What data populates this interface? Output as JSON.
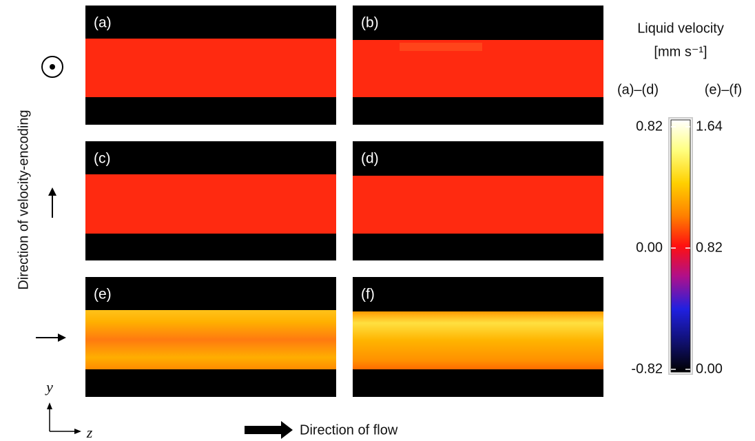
{
  "panels": [
    {
      "label": "(a)"
    },
    {
      "label": "(b)"
    },
    {
      "label": "(c)"
    },
    {
      "label": "(d)"
    },
    {
      "label": "(e)"
    },
    {
      "label": "(f)"
    }
  ],
  "colorbar": {
    "title": "Liquid velocity",
    "unit": "[mm s⁻¹]",
    "left": {
      "label": "(a)–(d)",
      "lim": [
        -0.82,
        0.82
      ],
      "ticks": [
        0.82,
        {
          "value": 0,
          "label": "0.00"
        },
        -0.82
      ]
    },
    "right": {
      "label": "(e)–(f)",
      "lim": [
        0,
        1.64
      ],
      "ticks": [
        1.64,
        0.82,
        {
          "value": 0,
          "label": "0.00"
        }
      ]
    }
  },
  "axes": {
    "encoding_label": "Direction of velocity-encoding",
    "y": "y",
    "z": "z",
    "flow_label": "Direction of flow"
  }
}
